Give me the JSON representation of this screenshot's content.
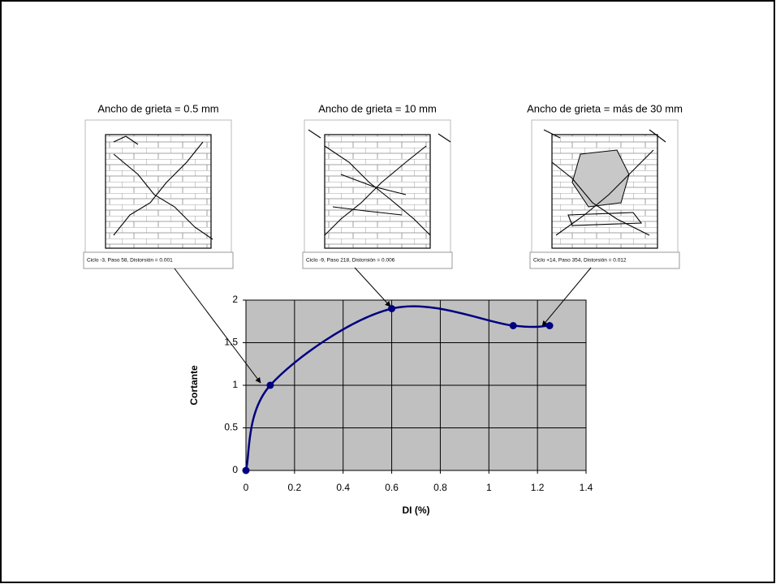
{
  "chart_data": {
    "type": "line",
    "annotations": [
      {
        "title": "Ancho de grieta =  0.5 mm",
        "caption": "Ciclo -3,  Paso 58, Distorsión = 0.001"
      },
      {
        "title": "Ancho de grieta = 10 mm",
        "caption": "Ciclo -9,  Paso 218, Distorsión = 0.006"
      },
      {
        "title": "Ancho de grieta = más de 30 mm",
        "caption": "Ciclo +14, Paso 354, Distorsión = 0.012"
      }
    ],
    "x_label": "DI (%)",
    "y_label": "Cortante",
    "x": [
      0,
      0.1,
      0.6,
      1.1,
      1.25
    ],
    "series": [
      {
        "color": "#000080",
        "values": [
          0,
          1,
          1.9,
          1.7,
          1.7
        ]
      }
    ],
    "xlim": [
      0,
      1.4
    ],
    "xticks": [
      0,
      0.2,
      0.4,
      0.6,
      0.8,
      1,
      1.2,
      1.4
    ],
    "ylim": [
      0,
      2
    ],
    "yticks": [
      0,
      0.5,
      1,
      1.5,
      2
    ],
    "grid": true,
    "plot_background": "#c0c0c0"
  }
}
